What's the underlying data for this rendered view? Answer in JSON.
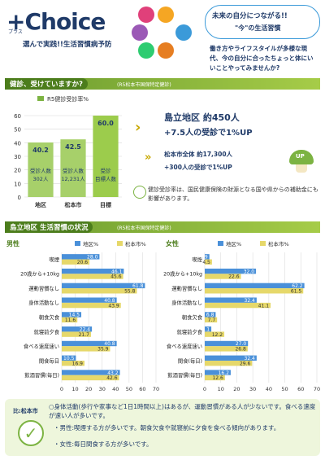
{
  "header": {
    "logo_main": "+Choice",
    "logo_sub": "プラス",
    "tagline": "選んで実践!!生活習慣病予防",
    "icons": [
      {
        "label": "飲食",
        "color": "#e0407a"
      },
      {
        "label": "運動",
        "color": "#f5a623"
      },
      {
        "label": "けんしん",
        "color": "#9b59b6"
      },
      {
        "label": "禁煙",
        "color": "#3b9ad9"
      },
      {
        "label": "すいみん",
        "color": "#2ecc71"
      },
      {
        "label": "ストレス",
        "color": "#e67e22"
      }
    ],
    "bubble_line1": "未来の自分につながる!!",
    "bubble_line2": "\"今\"の生活習慣",
    "bubble_highlight1": "未来",
    "message": "働き方やライフスタイルが多様な現代、今の自分に合ったちょっと体にいいことやってみませんか?"
  },
  "section1": {
    "title": "健診、受けていますか?",
    "note": "(R5松本市国保特定健診)",
    "chart_data": {
      "type": "bar",
      "title": "R5健診受診率%",
      "categories": [
        "地区",
        "松本市",
        "目標"
      ],
      "values": [
        40.2,
        42.5,
        60.0
      ],
      "value_labels": [
        "40.2",
        "42.5",
        "60.0"
      ],
      "ylim": [
        0,
        60
      ],
      "yticks": [
        "0",
        "10",
        "20",
        "30",
        "40",
        "50",
        "60"
      ],
      "legend": "R5健診受診率%"
    },
    "bar_annotations": [
      {
        "line1": "受診人数",
        "line2": "302人"
      },
      {
        "line1": "受診人数",
        "line2": "12,231人"
      },
      {
        "line1": "受診",
        "line2": "目標人数"
      }
    ],
    "district_line1": "島立地区 約450人",
    "district_line2": "+7.5人の受診で1%UP",
    "city_line1": "松本市全体 約17,300人",
    "city_line2": "+300人の受診で1%UP",
    "up_badge": "UP",
    "insurance_text": "健診受診率は、国民健康保険の財源となる国や県からの補助金にも影響があります。"
  },
  "section2": {
    "title": "島立地区 生活習慣の状況",
    "note": "(R5松本市国保特定健診)",
    "male": {
      "label": "男性",
      "legend": [
        "地区%",
        "松本市%"
      ],
      "chart_data": {
        "type": "bar",
        "categories": [
          "喫煙",
          "20歳から+10kg",
          "運動習慣なし",
          "身体活動なし",
          "朝食欠食",
          "就寝前夕食",
          "食べる速度速い",
          "間食毎日",
          "飲酒習慣(毎日)"
        ],
        "series": [
          {
            "name": "地区%",
            "values": [
              28.0,
              46.1,
              61.8,
              40.8,
              14.5,
              22.4,
              40.8,
              10.5,
              43.2
            ]
          },
          {
            "name": "松本市%",
            "values": [
              20.6,
              45.6,
              55.8,
              43.9,
              11.6,
              21.7,
              35.9,
              16.9,
              42.6
            ]
          }
        ],
        "xlim": [
          0,
          70
        ],
        "xticks": [
          "0",
          "10",
          "20",
          "30",
          "40",
          "50",
          "60",
          "70"
        ]
      }
    },
    "female": {
      "label": "女性",
      "legend": [
        "地区%",
        "松本市%"
      ],
      "chart_data": {
        "type": "bar",
        "categories": [
          "喫煙",
          "20歳から+10kg",
          "運動習慣なし",
          "身体活動なし",
          "朝食欠食",
          "就寝前夕食",
          "食べる速度速い",
          "間食(毎日)",
          "飲酒習慣(毎日)"
        ],
        "series": [
          {
            "name": "地区%",
            "values": [
              2.9,
              32.0,
              62.2,
              32.4,
              6.8,
              4.1,
              27.0,
              32.4,
              16.2
            ]
          },
          {
            "name": "松本市%",
            "values": [
              4.5,
              22.6,
              61.5,
              41.1,
              7.7,
              12.2,
              26.8,
              29.6,
              12.6
            ]
          }
        ],
        "xlim": [
          0,
          70
        ],
        "xticks": [
          "0",
          "10",
          "20",
          "30",
          "40",
          "50",
          "60",
          "70"
        ]
      }
    }
  },
  "summary": {
    "label": "比:松本市",
    "line1": "○身体活動(歩行や家事など1日1時間以上)はあるが、運動習慣がある人が少ないです。食べる速度が速い人が多いです。",
    "line2": "・男性:喫煙する方が多いです。朝食欠食や就寝前に夕食を食べる傾向があります。",
    "line3": "・女性:毎日間食する方が多いです。"
  },
  "colors": {
    "green": "#7cb342",
    "dark_green": "#4c7d1c",
    "yellow": "#e6d86a",
    "navy": "#1f3a68",
    "red_circle": "#d32f2f",
    "light_green_bg": "#eef6dc"
  }
}
